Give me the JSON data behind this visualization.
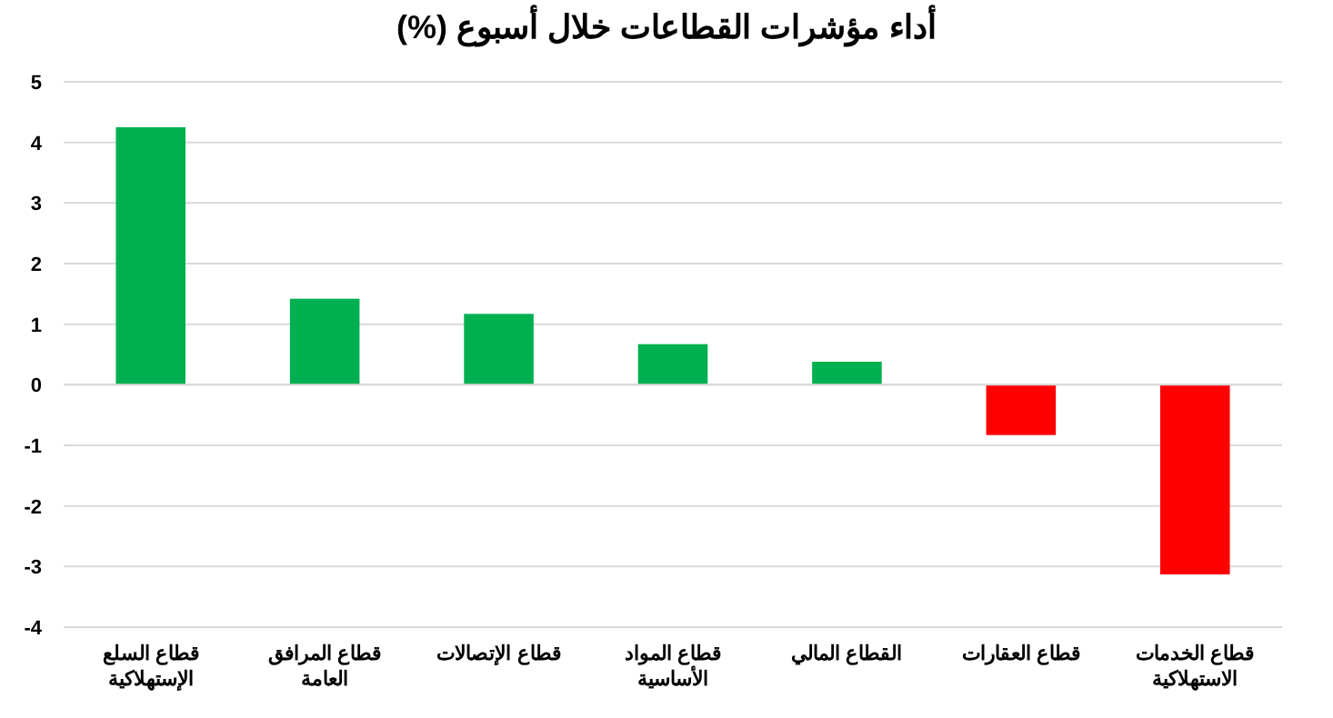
{
  "chart_data": {
    "type": "bar",
    "title": "أداء مؤشرات القطاعات خلال أسبوع (%)",
    "categories": [
      "قطاع السلع الإستهلاكية",
      "قطاع المرافق العامة",
      "قطاع الإتصالات",
      "قطاع المواد الأساسية",
      "القطاع المالي",
      "قطاع العقارات",
      "قطاع الخدمات الاستهلاكية"
    ],
    "values": [
      4.25,
      1.42,
      1.17,
      0.67,
      0.38,
      -0.83,
      -3.13
    ],
    "colors": [
      "#00b050",
      "#00b050",
      "#00b050",
      "#00b050",
      "#00b050",
      "#ff0000",
      "#ff0000"
    ],
    "ylim": [
      -4,
      5
    ],
    "yticks": [
      -4,
      -3,
      -2,
      -1,
      0,
      1,
      2,
      3,
      4,
      5
    ],
    "grid": "y"
  }
}
